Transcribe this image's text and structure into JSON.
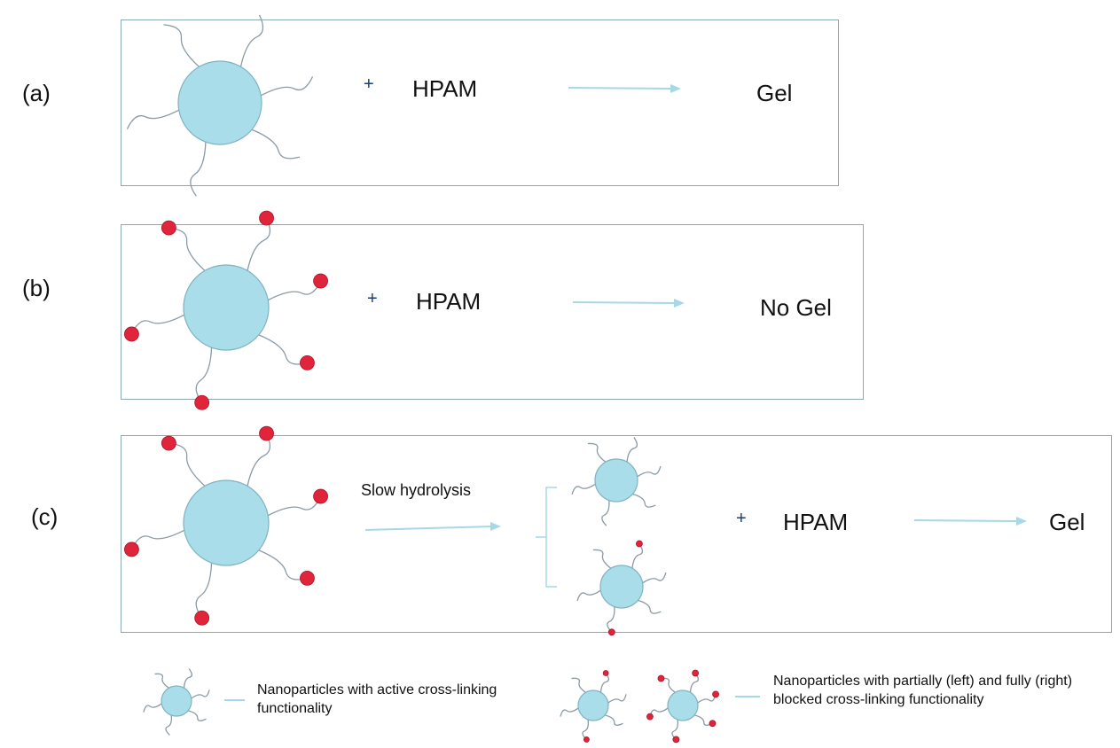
{
  "panels": [
    {
      "label": "(a)",
      "plus": "+",
      "reagent": "HPAM",
      "result": "Gel"
    },
    {
      "label": "(b)",
      "plus": "+",
      "reagent": "HPAM",
      "result": "No Gel"
    },
    {
      "label": "(c)",
      "step": "Slow hydrolysis",
      "plus": "+",
      "reagent": "HPAM",
      "result": "Gel"
    }
  ],
  "legend": {
    "active": "Nanoparticles with active cross-linking functionality",
    "blocked": "Nanoparticles with partially (left) and fully (right) blocked cross-linking functionality"
  },
  "colors": {
    "particle": "#a9dde9",
    "particle_stroke": "#7fb3c2",
    "chain": "#8a9aa5",
    "cap": "#e0243a",
    "arrow": "#a6d8e8",
    "border": "#8aa9b2"
  }
}
